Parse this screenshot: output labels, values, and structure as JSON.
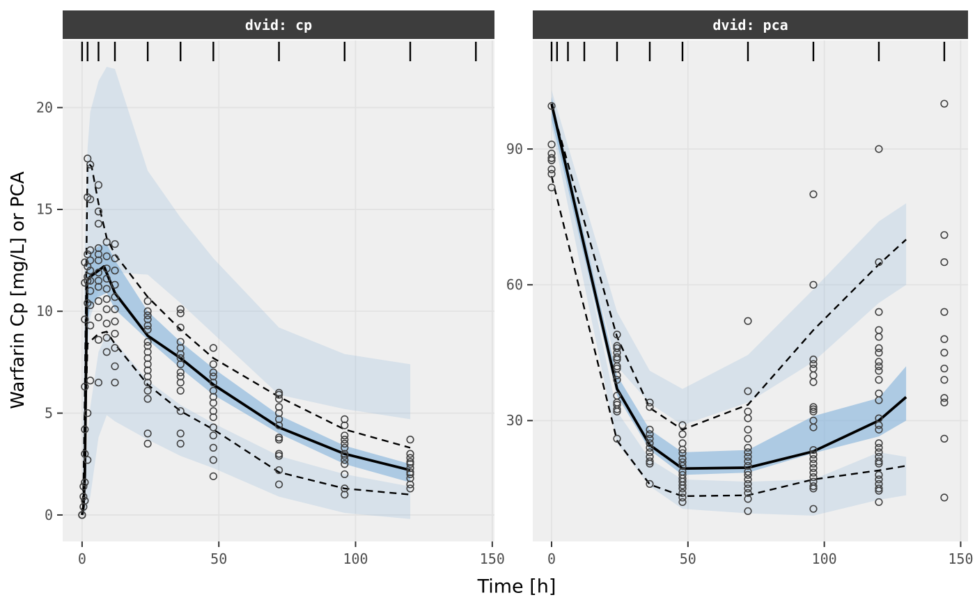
{
  "labels": {
    "x_title": "Time [h]",
    "y_title": "Warfarin Cp [mg/L] or PCA"
  },
  "colors": {
    "figure_bg": "#ffffff",
    "strip_bg": "#3d3d3d",
    "strip_text": "#ffffff",
    "panel_bg": "#efefef",
    "grid": "#e2e2e2",
    "ribbon": "#85b3dc",
    "line": "#000000",
    "point": "#404040",
    "tick": "#333333",
    "tick_label": "#4d4d4d",
    "rug": "#000000"
  },
  "chart_data": [
    {
      "type": "vpc",
      "id": "cp",
      "strip_label": "dvid: cp",
      "xlabel": "Time [h]",
      "ylabel": "Warfarin Cp [mg/L] or PCA",
      "xlim": [
        -7.1,
        150.8
      ],
      "ylim": [
        -1.3,
        23.3
      ],
      "x_ticks": [
        0,
        50,
        100,
        150
      ],
      "y_ticks": [
        0,
        5,
        10,
        15,
        20
      ],
      "grid": true,
      "rug_times": [
        0,
        2,
        6,
        12,
        24,
        36,
        48,
        72,
        96,
        120,
        144
      ],
      "ribbons": {
        "outer_upper": {
          "t": [
            0,
            0.5,
            1,
            2,
            3,
            6,
            9,
            12,
            24,
            36,
            48,
            72,
            96,
            120
          ],
          "lo": [
            0,
            1,
            4,
            8,
            9.7,
            11,
            11.7,
            11.9,
            11.8,
            10.4,
            8.9,
            5.9,
            5.2,
            4.7
          ],
          "hi": [
            0.5,
            6,
            13,
            18,
            19.8,
            21.3,
            22,
            21.9,
            16.9,
            14.6,
            12.6,
            9.2,
            7.9,
            7.4
          ]
        },
        "median_band": {
          "t": [
            0,
            0.5,
            1,
            2,
            3,
            6,
            9,
            12,
            24,
            36,
            48,
            72,
            96,
            120
          ],
          "lo": [
            0,
            0.2,
            1,
            9.5,
            10.2,
            10.7,
            10.9,
            10.1,
            8.6,
            7.2,
            5.9,
            4.0,
            2.5,
            1.6
          ],
          "hi": [
            0,
            1.5,
            4,
            12.6,
            12.9,
            13.2,
            13.3,
            12.5,
            10.0,
            8.5,
            7.2,
            4.9,
            3.4,
            2.5
          ]
        },
        "outer_lower": {
          "t": [
            0,
            0.5,
            1,
            2,
            3,
            6,
            9,
            12,
            24,
            36,
            48,
            72,
            96,
            120
          ],
          "lo": [
            0,
            0,
            0.1,
            0.4,
            0.9,
            3.8,
            4.9,
            4.6,
            3.7,
            2.9,
            2.3,
            0.9,
            0.1,
            -0.2
          ],
          "hi": [
            0,
            0.5,
            1.3,
            3.8,
            5.3,
            8.0,
            8.9,
            8.5,
            6.6,
            5.4,
            4.5,
            2.9,
            2.0,
            1.4
          ]
        }
      },
      "lines": {
        "median": [
          [
            0,
            0
          ],
          [
            0.5,
            0.4
          ],
          [
            1,
            2.0
          ],
          [
            1.8,
            11.5
          ],
          [
            3,
            11.7
          ],
          [
            6,
            12.0
          ],
          [
            8,
            12.2
          ],
          [
            12,
            10.9
          ],
          [
            24,
            8.8
          ],
          [
            36,
            7.7
          ],
          [
            48,
            6.4
          ],
          [
            72,
            4.3
          ],
          [
            96,
            3.0
          ],
          [
            120,
            2.2
          ]
        ],
        "p95": [
          [
            0,
            0
          ],
          [
            0.5,
            1.5
          ],
          [
            1,
            6.0
          ],
          [
            2,
            17.3
          ],
          [
            3.5,
            17.1
          ],
          [
            6,
            15.3
          ],
          [
            9,
            13.6
          ],
          [
            12,
            12.8
          ],
          [
            24,
            10.7
          ],
          [
            36,
            9.1
          ],
          [
            48,
            7.7
          ],
          [
            72,
            5.8
          ],
          [
            96,
            4.2
          ],
          [
            120,
            3.3
          ]
        ],
        "p5": [
          [
            0,
            0
          ],
          [
            0.5,
            0.3
          ],
          [
            1,
            3.5
          ],
          [
            2,
            8.4
          ],
          [
            6,
            8.9
          ],
          [
            9,
            9.0
          ],
          [
            12,
            8.4
          ],
          [
            24,
            6.4
          ],
          [
            36,
            5.1
          ],
          [
            48,
            4.2
          ],
          [
            72,
            2.1
          ],
          [
            96,
            1.3
          ],
          [
            120,
            1.0
          ]
        ]
      },
      "points": [
        {
          "t": 0,
          "v": [
            0,
            0,
            0
          ]
        },
        {
          "t": 0.5,
          "v": [
            0.4,
            0.9,
            1.4
          ]
        },
        {
          "t": 1,
          "v": [
            0.7,
            1.6,
            3.0,
            4.2,
            6.3,
            9.6,
            11.4,
            12.4
          ]
        },
        {
          "t": 2,
          "v": [
            2.7,
            5.0,
            10.4,
            11.5,
            11.7,
            12.2,
            12.8,
            15.6,
            17.5
          ]
        },
        {
          "t": 3,
          "v": [
            6.6,
            9.3,
            10.3,
            11.0,
            11.5,
            12.0,
            12.5,
            13.0,
            15.5,
            17.2
          ]
        },
        {
          "t": 6,
          "v": [
            6.5,
            8.6,
            9.7,
            10.5,
            11.2,
            11.5,
            11.9,
            12.5,
            12.8,
            13.1,
            14.3,
            14.9,
            16.2
          ]
        },
        {
          "t": 9,
          "v": [
            8.0,
            8.7,
            9.4,
            10.1,
            10.6,
            11.1,
            11.6,
            12.1,
            12.7,
            13.4
          ]
        },
        {
          "t": 12,
          "v": [
            6.5,
            7.3,
            8.2,
            8.9,
            9.5,
            10.1,
            10.7,
            11.3,
            12.0,
            12.6,
            13.3
          ]
        },
        {
          "t": 24,
          "v": [
            3.5,
            4.0,
            5.7,
            6.1,
            6.5,
            6.8,
            7.1,
            7.4,
            7.7,
            8.0,
            8.3,
            8.5,
            9.1,
            9.3,
            9.6,
            9.8,
            10.0,
            10.5
          ]
        },
        {
          "t": 36,
          "v": [
            3.5,
            4.0,
            5.1,
            6.1,
            6.5,
            6.8,
            7.0,
            7.4,
            7.7,
            7.9,
            8.2,
            8.5,
            9.2,
            9.9,
            10.1
          ]
        },
        {
          "t": 48,
          "v": [
            1.9,
            2.7,
            3.3,
            3.9,
            4.3,
            4.8,
            5.1,
            5.5,
            5.8,
            6.1,
            6.5,
            6.8,
            7.0,
            7.4,
            8.2
          ]
        },
        {
          "t": 72,
          "v": [
            1.5,
            2.2,
            2.9,
            3.0,
            3.7,
            3.8,
            4.4,
            4.7,
            5.0,
            5.3,
            5.7,
            5.9,
            6.0
          ]
        },
        {
          "t": 96,
          "v": [
            1.0,
            1.3,
            2.0,
            2.5,
            2.7,
            2.9,
            3.0,
            3.3,
            3.5,
            3.7,
            3.9,
            4.4,
            4.7
          ]
        },
        {
          "t": 120,
          "v": [
            1.3,
            1.5,
            1.8,
            2.0,
            2.1,
            2.3,
            2.5,
            2.6,
            2.8,
            3.0,
            3.7
          ]
        }
      ]
    },
    {
      "type": "vpc",
      "id": "pca",
      "strip_label": "dvid: pca",
      "xlabel": "Time [h]",
      "ylabel": "Warfarin Cp [mg/L] or PCA",
      "xlim": [
        -6.9,
        152.7
      ],
      "ylim": [
        3.3,
        114.0
      ],
      "x_ticks": [
        0,
        50,
        100,
        150
      ],
      "y_ticks": [
        30,
        60,
        90
      ],
      "grid": true,
      "rug_times": [
        0,
        2,
        6,
        12,
        24,
        36,
        48,
        72,
        96,
        120,
        144
      ],
      "ribbons": {
        "outer_upper": {
          "t": [
            0,
            24,
            36,
            48,
            72,
            96,
            120,
            130
          ],
          "lo": [
            98,
            42,
            33.8,
            29,
            34,
            43,
            56,
            60
          ],
          "hi": [
            103,
            54,
            41,
            37,
            44.5,
            59,
            74,
            78
          ]
        },
        "median_band": {
          "t": [
            0,
            24,
            36,
            48,
            72,
            96,
            120,
            130
          ],
          "lo": [
            96.5,
            35.5,
            23.5,
            18,
            18.5,
            22.8,
            26.5,
            30
          ],
          "hi": [
            101.5,
            40,
            28,
            23,
            23.5,
            31,
            35,
            42
          ]
        },
        "outer_lower": {
          "t": [
            0,
            24,
            36,
            48,
            72,
            96,
            120,
            130
          ],
          "lo": [
            95,
            25,
            15.5,
            10.5,
            9.5,
            9,
            12.5,
            13.5
          ],
          "hi": [
            100,
            32,
            21.5,
            17,
            16.5,
            17,
            23,
            22
          ]
        }
      },
      "lines": {
        "median": [
          [
            0,
            100
          ],
          [
            24,
            37
          ],
          [
            36,
            24.6
          ],
          [
            48,
            19.4
          ],
          [
            72,
            19.6
          ],
          [
            96,
            23.2
          ],
          [
            120,
            30
          ],
          [
            130,
            35.2
          ]
        ],
        "p95": [
          [
            0,
            99.5
          ],
          [
            24,
            48.5
          ],
          [
            36,
            32.8
          ],
          [
            48,
            28
          ],
          [
            72,
            33.5
          ],
          [
            96,
            50
          ],
          [
            120,
            64.5
          ],
          [
            130,
            70
          ]
        ],
        "p5": [
          [
            0,
            84
          ],
          [
            24,
            25.6
          ],
          [
            36,
            15.9
          ],
          [
            48,
            13.3
          ],
          [
            72,
            13.5
          ],
          [
            96,
            17
          ],
          [
            120,
            19
          ],
          [
            130,
            20
          ]
        ]
      },
      "points": [
        {
          "t": 0,
          "v": [
            99.5,
            91,
            89,
            88,
            87.5,
            85.5,
            84.5,
            81.5
          ]
        },
        {
          "t": 24,
          "v": [
            26,
            32,
            32.5,
            33.5,
            34,
            35.5,
            39,
            40,
            41.5,
            42,
            43.5,
            44,
            45,
            46,
            46.5,
            49
          ]
        },
        {
          "t": 36,
          "v": [
            16,
            20.5,
            21,
            22,
            23,
            24,
            25,
            26,
            27,
            28,
            33,
            34
          ]
        },
        {
          "t": 48,
          "v": [
            12,
            13,
            14,
            15,
            15.7,
            16.5,
            17.2,
            18,
            18.7,
            20,
            20.8,
            21.6,
            22.8,
            23.6,
            25,
            27,
            29
          ]
        },
        {
          "t": 72,
          "v": [
            10,
            12.7,
            14,
            15,
            16,
            17,
            18,
            18.7,
            20,
            21,
            22,
            23,
            24,
            26,
            28,
            30.5,
            32,
            36.5,
            52
          ]
        },
        {
          "t": 96,
          "v": [
            10.5,
            15,
            15.5,
            16.5,
            17.5,
            18.5,
            19.5,
            20.5,
            21.5,
            22.5,
            23.5,
            28.5,
            30,
            32,
            32.5,
            33,
            38.5,
            40,
            41.5,
            42.5,
            43.5,
            60,
            80
          ]
        },
        {
          "t": 120,
          "v": [
            12,
            14.5,
            15,
            16,
            17,
            18,
            20.5,
            21,
            22,
            23,
            24,
            25,
            28,
            29,
            30.5,
            34.5,
            36,
            39,
            41,
            42,
            43,
            45,
            46,
            48.5,
            50,
            54,
            65,
            90
          ]
        },
        {
          "t": 144,
          "v": [
            13,
            26,
            34,
            35,
            39,
            41.5,
            45,
            48,
            54,
            65,
            71,
            100
          ]
        }
      ]
    }
  ]
}
